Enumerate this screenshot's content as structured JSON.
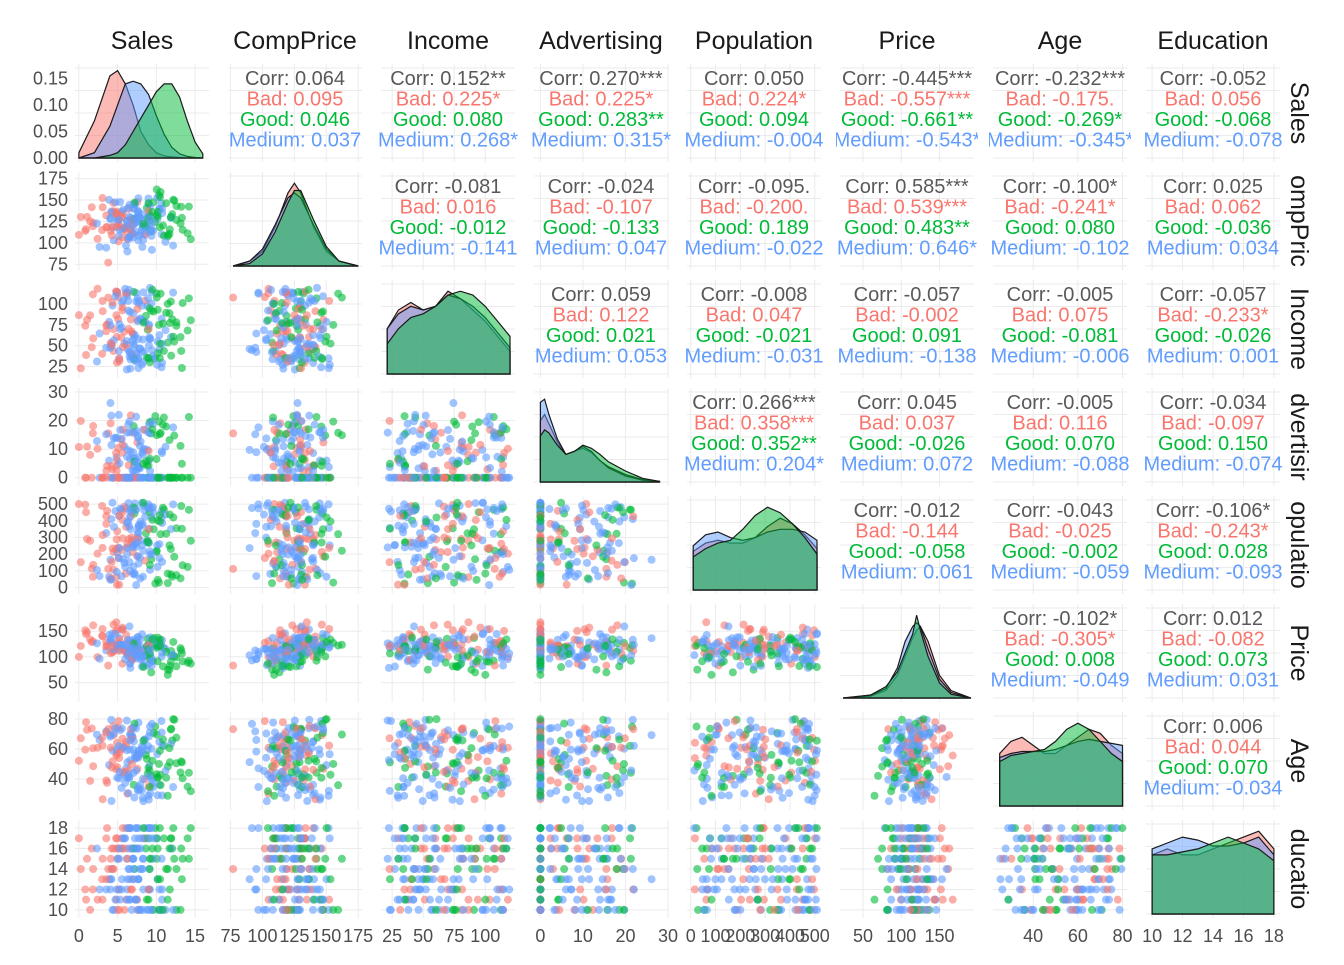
{
  "chart_data": {
    "type": "scatter",
    "chart_kind": "scatterplot-matrix",
    "grid": true,
    "legend": "none",
    "variables": [
      "Sales",
      "CompPrice",
      "Income",
      "Advertising",
      "Population",
      "Price",
      "Age",
      "Education"
    ],
    "row_strip_labels": [
      "Sales",
      "ompPric",
      "Income",
      "dvertisir",
      "opulatio",
      "Price",
      "Age",
      "ducatio"
    ],
    "groups": [
      {
        "key": "overall",
        "color": "#595959"
      },
      {
        "key": "Bad",
        "color": "#F8766D"
      },
      {
        "key": "Good",
        "color": "#00BA38"
      },
      {
        "key": "Medium",
        "color": "#619CFF"
      }
    ],
    "axes": [
      {
        "var": "Sales",
        "range": [
          -0.5,
          16.8
        ],
        "ticks": [
          "0",
          "5",
          "10",
          "15"
        ],
        "tick_values": [
          0,
          5,
          10,
          15
        ],
        "density_range": [
          0,
          0.17
        ],
        "density_ticks": [
          "0.00",
          "0.05",
          "0.10",
          "0.15"
        ],
        "density_tick_values": [
          0,
          0.05,
          0.1,
          0.15
        ]
      },
      {
        "var": "CompPrice",
        "range": [
          73,
          178
        ],
        "ticks": [
          "75",
          "100",
          "125",
          "150",
          "175"
        ],
        "tick_values": [
          75,
          100,
          125,
          150,
          175
        ]
      },
      {
        "var": "Income",
        "range": [
          16,
          124
        ],
        "ticks": [
          "25",
          "50",
          "75",
          "100"
        ],
        "tick_values": [
          25,
          50,
          75,
          100
        ]
      },
      {
        "var": "Advertising",
        "range": [
          -1.5,
          30
        ],
        "ticks": [
          "0",
          "10",
          "20",
          "30"
        ],
        "tick_values": [
          0,
          10,
          20,
          30
        ]
      },
      {
        "var": "Population",
        "range": [
          -15,
          525
        ],
        "ticks": [
          "0",
          "100",
          "200",
          "300",
          "400",
          "500"
        ],
        "tick_values": [
          0,
          100,
          200,
          300,
          400,
          500
        ]
      },
      {
        "var": "Price",
        "range": [
          20,
          195
        ],
        "ticks": [
          "50",
          "100",
          "150"
        ],
        "tick_values": [
          50,
          100,
          150
        ]
      },
      {
        "var": "Age",
        "range": [
          22,
          82
        ],
        "ticks": [
          "40",
          "60",
          "80"
        ],
        "tick_values": [
          40,
          60,
          80
        ]
      },
      {
        "var": "Education",
        "range": [
          9.6,
          18.4
        ],
        "ticks": [
          "10",
          "12",
          "14",
          "16",
          "18"
        ],
        "tick_values": [
          10,
          12,
          14,
          16,
          18
        ]
      }
    ],
    "correlation_cells": [
      {
        "row": 0,
        "col": 1,
        "lines": [
          "Corr: 0.064",
          "Bad: 0.095",
          "Good: 0.046",
          "Medium: 0.037"
        ]
      },
      {
        "row": 0,
        "col": 2,
        "lines": [
          "Corr: 0.152**",
          "Bad: 0.225*",
          "Good: 0.080",
          "Medium: 0.268*"
        ]
      },
      {
        "row": 0,
        "col": 3,
        "lines": [
          "Corr: 0.270***",
          "Bad: 0.225*",
          "Good: 0.283**",
          "Medium: 0.315*"
        ]
      },
      {
        "row": 0,
        "col": 4,
        "lines": [
          "Corr: 0.050",
          "Bad: 0.224*",
          "Good: 0.094",
          "Medium: -0.004"
        ]
      },
      {
        "row": 0,
        "col": 5,
        "lines": [
          "Corr: -0.445***",
          "Bad: -0.557***",
          "Good: -0.661**",
          "Medium: -0.543*"
        ]
      },
      {
        "row": 0,
        "col": 6,
        "lines": [
          "Corr: -0.232***",
          "Bad: -0.175.",
          "Good: -0.269*",
          "Medium: -0.345*"
        ]
      },
      {
        "row": 0,
        "col": 7,
        "lines": [
          "Corr: -0.052",
          "Bad: 0.056",
          "Good: -0.068",
          "Medium: -0.078"
        ]
      },
      {
        "row": 1,
        "col": 2,
        "lines": [
          "Corr: -0.081",
          "Bad: 0.016",
          "Good: -0.012",
          "Medium: -0.141"
        ]
      },
      {
        "row": 1,
        "col": 3,
        "lines": [
          "Corr: -0.024",
          "Bad: -0.107",
          "Good: -0.133",
          "Medium: 0.047"
        ]
      },
      {
        "row": 1,
        "col": 4,
        "lines": [
          "Corr: -0.095.",
          "Bad: -0.200.",
          "Good: 0.189",
          "Medium: -0.022"
        ]
      },
      {
        "row": 1,
        "col": 5,
        "lines": [
          "Corr: 0.585***",
          "Bad: 0.539***",
          "Good: 0.483**",
          "Medium: 0.646*"
        ]
      },
      {
        "row": 1,
        "col": 6,
        "lines": [
          "Corr: -0.100*",
          "Bad: -0.241*",
          "Good: 0.080",
          "Medium: -0.102"
        ]
      },
      {
        "row": 1,
        "col": 7,
        "lines": [
          "Corr: 0.025",
          "Bad: 0.062",
          "Good: -0.036",
          "Medium: 0.034"
        ]
      },
      {
        "row": 2,
        "col": 3,
        "lines": [
          "Corr: 0.059",
          "Bad: 0.122",
          "Good: 0.021",
          "Medium: 0.053"
        ]
      },
      {
        "row": 2,
        "col": 4,
        "lines": [
          "Corr: -0.008",
          "Bad: 0.047",
          "Good: -0.021",
          "Medium: -0.031"
        ]
      },
      {
        "row": 2,
        "col": 5,
        "lines": [
          "Corr: -0.057",
          "Bad: -0.002",
          "Good: 0.091",
          "Medium: -0.138"
        ]
      },
      {
        "row": 2,
        "col": 6,
        "lines": [
          "Corr: -0.005",
          "Bad: 0.075",
          "Good: -0.081",
          "Medium: -0.006"
        ]
      },
      {
        "row": 2,
        "col": 7,
        "lines": [
          "Corr: -0.057",
          "Bad: -0.233*",
          "Good: -0.026",
          "Medium: 0.001"
        ]
      },
      {
        "row": 3,
        "col": 4,
        "lines": [
          "Corr: 0.266***",
          "Bad: 0.358***",
          "Good: 0.352**",
          "Medium: 0.204*"
        ]
      },
      {
        "row": 3,
        "col": 5,
        "lines": [
          "Corr: 0.045",
          "Bad: 0.037",
          "Good: -0.026",
          "Medium: 0.072"
        ]
      },
      {
        "row": 3,
        "col": 6,
        "lines": [
          "Corr: -0.005",
          "Bad: 0.116",
          "Good: 0.070",
          "Medium: -0.088"
        ]
      },
      {
        "row": 3,
        "col": 7,
        "lines": [
          "Corr: -0.034",
          "Bad: -0.097",
          "Good: 0.150",
          "Medium: -0.074"
        ]
      },
      {
        "row": 4,
        "col": 5,
        "lines": [
          "Corr: -0.012",
          "Bad: -0.144",
          "Good: -0.058",
          "Medium: 0.061"
        ]
      },
      {
        "row": 4,
        "col": 6,
        "lines": [
          "Corr: -0.043",
          "Bad: -0.025",
          "Good: -0.002",
          "Medium: -0.059"
        ]
      },
      {
        "row": 4,
        "col": 7,
        "lines": [
          "Corr: -0.106*",
          "Bad: -0.243*",
          "Good: 0.028",
          "Medium: -0.093"
        ]
      },
      {
        "row": 5,
        "col": 6,
        "lines": [
          "Corr: -0.102*",
          "Bad: -0.305*",
          "Good: 0.008",
          "Medium: -0.049"
        ]
      },
      {
        "row": 5,
        "col": 7,
        "lines": [
          "Corr: 0.012",
          "Bad: -0.082",
          "Good: 0.073",
          "Medium: 0.031"
        ]
      },
      {
        "row": 6,
        "col": 7,
        "lines": [
          "Corr: 0.006",
          "Bad: 0.044",
          "Good: 0.070",
          "Medium: -0.034"
        ]
      }
    ],
    "densities": [
      {
        "var": "Sales",
        "x": [
          0,
          2,
          4,
          5,
          6,
          7,
          8,
          9,
          10,
          11,
          12,
          13,
          14,
          15,
          16
        ],
        "Bad": [
          0.01,
          0.07,
          0.155,
          0.165,
          0.14,
          0.1,
          0.05,
          0.025,
          0.01,
          0.004,
          0.002,
          0.001,
          0,
          0,
          0
        ],
        "Medium": [
          0,
          0.01,
          0.06,
          0.1,
          0.14,
          0.145,
          0.14,
          0.12,
          0.08,
          0.045,
          0.02,
          0.008,
          0.003,
          0.001,
          0
        ],
        "Good": [
          0,
          0,
          0.005,
          0.01,
          0.025,
          0.05,
          0.075,
          0.1,
          0.125,
          0.14,
          0.14,
          0.115,
          0.07,
          0.03,
          0.008
        ]
      },
      {
        "var": "CompPrice",
        "x": [
          77,
          90,
          100,
          110,
          120,
          125,
          130,
          140,
          150,
          160,
          175
        ],
        "Bad": [
          0,
          0.002,
          0.006,
          0.016,
          0.03,
          0.034,
          0.03,
          0.016,
          0.006,
          0.002,
          0
        ],
        "Medium": [
          0,
          0.002,
          0.007,
          0.017,
          0.028,
          0.03,
          0.028,
          0.017,
          0.007,
          0.002,
          0
        ],
        "Good": [
          0,
          0.001,
          0.005,
          0.014,
          0.026,
          0.031,
          0.031,
          0.019,
          0.008,
          0.002,
          0
        ]
      },
      {
        "var": "Income",
        "x": [
          21,
          30,
          40,
          50,
          60,
          70,
          80,
          90,
          100,
          110,
          120
        ],
        "Bad": [
          0.006,
          0.0085,
          0.0095,
          0.0085,
          0.009,
          0.011,
          0.01,
          0.0085,
          0.007,
          0.005,
          0.003
        ],
        "Medium": [
          0.006,
          0.008,
          0.009,
          0.0085,
          0.009,
          0.0105,
          0.01,
          0.009,
          0.0075,
          0.0055,
          0.0035
        ],
        "Good": [
          0.004,
          0.006,
          0.0075,
          0.008,
          0.009,
          0.0105,
          0.011,
          0.0105,
          0.009,
          0.007,
          0.005
        ]
      },
      {
        "var": "Advertising",
        "x": [
          0,
          1,
          2,
          4,
          6,
          8,
          10,
          12,
          14,
          16,
          20,
          24,
          28
        ],
        "Bad": [
          0.1,
          0.11,
          0.095,
          0.065,
          0.045,
          0.05,
          0.055,
          0.048,
          0.035,
          0.025,
          0.012,
          0.004,
          0.001
        ],
        "Medium": [
          0.13,
          0.135,
          0.11,
          0.07,
          0.045,
          0.05,
          0.058,
          0.05,
          0.035,
          0.023,
          0.01,
          0.003,
          0.001
        ],
        "Good": [
          0.075,
          0.085,
          0.08,
          0.06,
          0.045,
          0.05,
          0.06,
          0.055,
          0.045,
          0.033,
          0.018,
          0.006,
          0.001
        ]
      },
      {
        "var": "Population",
        "x": [
          10,
          60,
          110,
          160,
          210,
          260,
          310,
          360,
          410,
          460,
          509
        ],
        "Bad": [
          0.0014,
          0.0017,
          0.0018,
          0.0017,
          0.0017,
          0.0019,
          0.0023,
          0.0026,
          0.0024,
          0.002,
          0.0015
        ],
        "Medium": [
          0.0016,
          0.002,
          0.0021,
          0.0019,
          0.0018,
          0.0019,
          0.0021,
          0.0022,
          0.0022,
          0.0021,
          0.0018
        ],
        "Good": [
          0.0012,
          0.0015,
          0.0017,
          0.0018,
          0.0022,
          0.0027,
          0.003,
          0.0028,
          0.0024,
          0.0019,
          0.0013
        ]
      },
      {
        "var": "Price",
        "x": [
          24,
          60,
          80,
          95,
          105,
          115,
          120,
          125,
          135,
          150,
          165,
          191
        ],
        "Bad": [
          0,
          0.0005,
          0.002,
          0.006,
          0.011,
          0.016,
          0.018,
          0.019,
          0.015,
          0.006,
          0.002,
          0
        ],
        "Medium": [
          0,
          0.0006,
          0.0025,
          0.008,
          0.015,
          0.019,
          0.02,
          0.019,
          0.013,
          0.005,
          0.0015,
          0
        ],
        "Good": [
          0,
          0.0008,
          0.003,
          0.007,
          0.012,
          0.017,
          0.022,
          0.018,
          0.011,
          0.004,
          0.001,
          0
        ]
      },
      {
        "var": "Age",
        "x": [
          25,
          30,
          35,
          40,
          45,
          50,
          55,
          60,
          65,
          70,
          75,
          80
        ],
        "Bad": [
          0.013,
          0.016,
          0.017,
          0.015,
          0.013,
          0.013,
          0.015,
          0.017,
          0.019,
          0.018,
          0.015,
          0.013
        ],
        "Medium": [
          0.012,
          0.013,
          0.0135,
          0.0135,
          0.0135,
          0.014,
          0.015,
          0.016,
          0.0165,
          0.016,
          0.0155,
          0.015
        ],
        "Good": [
          0.011,
          0.0125,
          0.013,
          0.0135,
          0.014,
          0.016,
          0.019,
          0.0205,
          0.019,
          0.016,
          0.013,
          0.011
        ]
      },
      {
        "var": "Education",
        "x": [
          10,
          11,
          12,
          13,
          14,
          15,
          16,
          17,
          18
        ],
        "Bad": [
          0.1,
          0.11,
          0.1,
          0.1,
          0.11,
          0.12,
          0.13,
          0.14,
          0.11
        ],
        "Medium": [
          0.11,
          0.12,
          0.13,
          0.125,
          0.115,
          0.115,
          0.12,
          0.13,
          0.1
        ],
        "Good": [
          0.1,
          0.1,
          0.105,
          0.11,
          0.12,
          0.13,
          0.12,
          0.11,
          0.09
        ]
      }
    ]
  }
}
